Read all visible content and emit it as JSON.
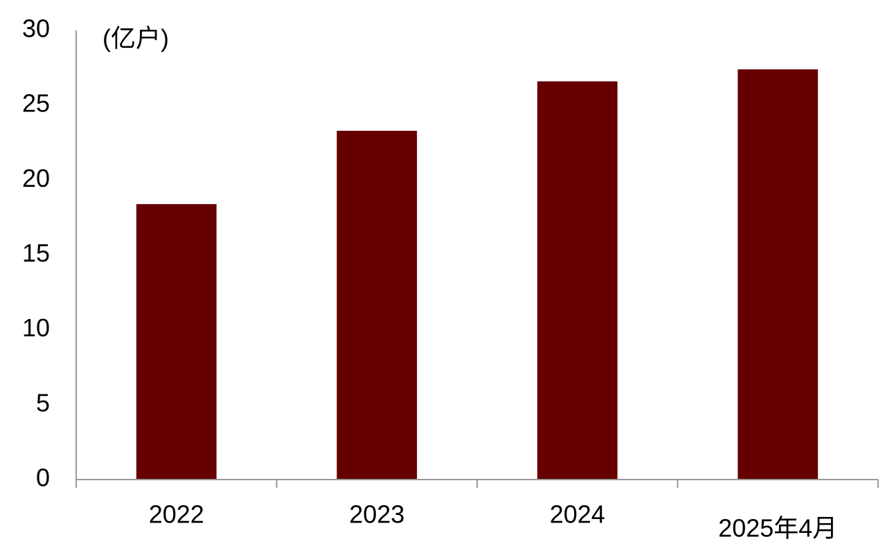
{
  "chart_data": {
    "type": "bar",
    "ylabel": "(亿户)",
    "categories": [
      "2022",
      "2023",
      "2024",
      "2025年4月"
    ],
    "values": [
      18.4,
      23.3,
      26.6,
      27.4
    ],
    "color": "#660000",
    "ylim": [
      0,
      30
    ],
    "yticks": [
      0,
      5,
      10,
      15,
      20,
      25,
      30
    ],
    "grid": false
  }
}
